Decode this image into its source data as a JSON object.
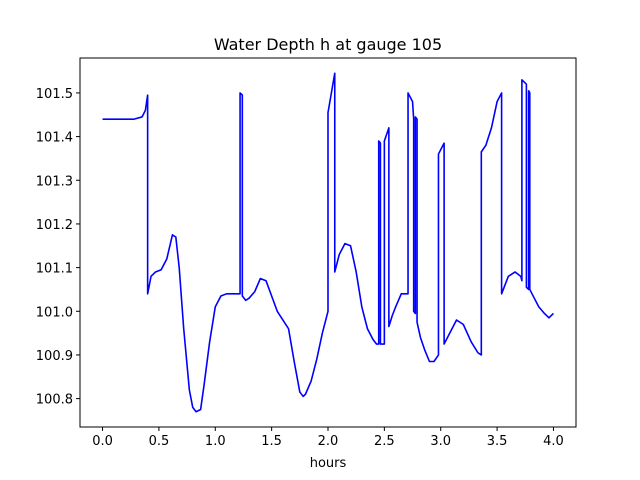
{
  "chart_data": {
    "type": "line",
    "title": "Water Depth h at gauge 105",
    "xlabel": "hours",
    "ylabel": "",
    "xlim": [
      -0.2,
      4.2
    ],
    "ylim": [
      100.735,
      101.58
    ],
    "xticks": [
      "0.0",
      "0.5",
      "1.0",
      "1.5",
      "2.0",
      "2.5",
      "3.0",
      "3.5",
      "4.0"
    ],
    "xtick_values": [
      0.0,
      0.5,
      1.0,
      1.5,
      2.0,
      2.5,
      3.0,
      3.5,
      4.0
    ],
    "yticks": [
      "100.8",
      "100.9",
      "101.0",
      "101.1",
      "101.2",
      "101.3",
      "101.4",
      "101.5"
    ],
    "ytick_values": [
      100.8,
      100.9,
      101.0,
      101.1,
      101.2,
      101.3,
      101.4,
      101.5
    ],
    "grid": false,
    "series": [
      {
        "color": "#0000ff",
        "x": [
          0.0,
          0.1,
          0.2,
          0.28,
          0.35,
          0.38,
          0.4,
          0.4,
          0.43,
          0.47,
          0.52,
          0.57,
          0.62,
          0.65,
          0.68,
          0.72,
          0.77,
          0.8,
          0.83,
          0.87,
          0.9,
          0.95,
          1.0,
          1.05,
          1.1,
          1.15,
          1.2,
          1.22,
          1.22,
          1.24,
          1.24,
          1.27,
          1.3,
          1.35,
          1.4,
          1.45,
          1.5,
          1.55,
          1.6,
          1.65,
          1.7,
          1.75,
          1.78,
          1.8,
          1.85,
          1.9,
          1.95,
          2.0,
          2.0,
          2.06,
          2.06,
          2.1,
          2.15,
          2.2,
          2.25,
          2.3,
          2.35,
          2.4,
          2.43,
          2.45,
          2.45,
          2.465,
          2.465,
          2.5,
          2.5,
          2.54,
          2.54,
          2.57,
          2.6,
          2.65,
          2.7,
          2.71,
          2.71,
          2.75,
          2.76,
          2.76,
          2.775,
          2.775,
          2.79,
          2.79,
          2.82,
          2.86,
          2.9,
          2.94,
          2.98,
          2.98,
          3.03,
          3.03,
          3.08,
          3.14,
          3.2,
          3.27,
          3.33,
          3.36,
          3.36,
          3.4,
          3.45,
          3.5,
          3.54,
          3.54,
          3.6,
          3.66,
          3.71,
          3.72,
          3.72,
          3.76,
          3.76,
          3.78,
          3.78,
          3.79,
          3.79,
          3.83,
          3.87,
          3.92,
          3.96,
          4.0
        ],
        "values": [
          101.44,
          101.44,
          101.44,
          101.44,
          101.445,
          101.46,
          101.495,
          101.04,
          101.08,
          101.09,
          101.095,
          101.12,
          101.175,
          101.17,
          101.1,
          100.96,
          100.82,
          100.78,
          100.77,
          100.775,
          100.83,
          100.93,
          101.01,
          101.035,
          101.04,
          101.04,
          101.04,
          101.04,
          101.5,
          101.495,
          101.035,
          101.025,
          101.03,
          101.045,
          101.075,
          101.07,
          101.035,
          101.0,
          100.98,
          100.96,
          100.885,
          100.815,
          100.805,
          100.81,
          100.84,
          100.89,
          100.95,
          101.0,
          101.455,
          101.545,
          101.09,
          101.13,
          101.155,
          101.15,
          101.09,
          101.01,
          100.96,
          100.935,
          100.925,
          100.925,
          101.39,
          101.385,
          100.925,
          100.925,
          101.39,
          101.42,
          100.965,
          100.99,
          101.01,
          101.04,
          101.04,
          101.04,
          101.5,
          101.48,
          101.44,
          101.0,
          100.995,
          101.445,
          101.44,
          100.975,
          100.94,
          100.91,
          100.885,
          100.885,
          100.9,
          101.36,
          101.385,
          100.925,
          100.95,
          100.98,
          100.97,
          100.93,
          100.905,
          100.9,
          101.365,
          101.38,
          101.42,
          101.48,
          101.5,
          101.04,
          101.08,
          101.09,
          101.08,
          101.07,
          101.53,
          101.52,
          101.055,
          101.05,
          101.505,
          101.5,
          101.05,
          101.03,
          101.01,
          100.995,
          100.985,
          100.995
        ]
      }
    ]
  }
}
